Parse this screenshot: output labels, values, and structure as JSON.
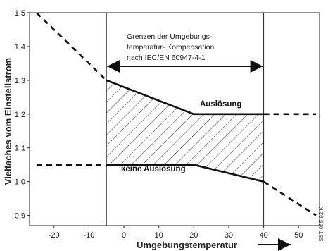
{
  "chart_data": {
    "type": "line",
    "xlabel": "Umgebungstemperatur",
    "ylabel": "Vielfaches vom Einstellstrom",
    "xlim": [
      -27,
      56
    ],
    "ylim": [
      0.87,
      1.5
    ],
    "xticks": [
      "-20",
      "-10",
      "0",
      "10",
      "20",
      "30",
      "40",
      "50"
    ],
    "xtick_values": [
      -20,
      -10,
      0,
      10,
      20,
      30,
      40,
      50
    ],
    "yticks": [
      "0,9",
      "1,0",
      "1,1",
      "1,2",
      "1,3",
      "1,4",
      "1,5"
    ],
    "ytick_values": [
      0.9,
      1.0,
      1.1,
      1.2,
      1.3,
      1.4,
      1.5
    ],
    "grid": false,
    "compensation_range": [
      -5,
      40
    ],
    "annotation": [
      "Grenzen der Umgebungs-",
      "temperatur- Kompensation",
      "nach IEC/EN 60947-4-1"
    ],
    "upper_label": "Auslösung",
    "lower_label": "keine Auslösung",
    "image_code": "SST 085 92 K",
    "series": [
      {
        "role": "upper",
        "style": "solid",
        "x": [
          -5,
          20,
          40
        ],
        "y": [
          1.3,
          1.2,
          1.2
        ]
      },
      {
        "role": "upper",
        "style": "dashed",
        "x": [
          -25,
          -5
        ],
        "y": [
          1.5,
          1.3
        ]
      },
      {
        "role": "upper",
        "style": "dashed",
        "x": [
          40,
          55
        ],
        "y": [
          1.2,
          1.2
        ]
      },
      {
        "role": "lower",
        "style": "solid",
        "x": [
          -5,
          20,
          40
        ],
        "y": [
          1.05,
          1.05,
          1.0
        ]
      },
      {
        "role": "lower",
        "style": "dashed",
        "x": [
          -25,
          -5
        ],
        "y": [
          1.05,
          1.05
        ]
      },
      {
        "role": "lower",
        "style": "dashed",
        "x": [
          40,
          55
        ],
        "y": [
          1.0,
          0.9
        ]
      }
    ]
  }
}
